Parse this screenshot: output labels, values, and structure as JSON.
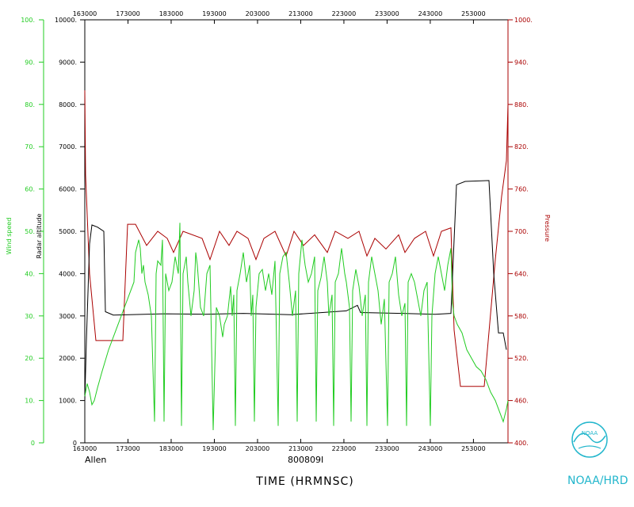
{
  "chart_data": {
    "type": "line",
    "storm_label": "Allen",
    "flight_id": "800809I",
    "xlabel": "TIME (HRMNSC)",
    "x_tick_labels": [
      "163000",
      "173000",
      "183000",
      "193000",
      "203000",
      "213000",
      "223000",
      "233000",
      "243000",
      "253000"
    ],
    "y_left_outer": {
      "label": "Wind speed",
      "ylim": [
        0,
        100
      ],
      "color": "#22cc22",
      "tick_labels": [
        "0",
        "10.",
        "20.",
        "30.",
        "40.",
        "50.",
        "60.",
        "70.",
        "80.",
        "90.",
        "100."
      ]
    },
    "y_left_inner": {
      "label": "Radar altitude",
      "ylim": [
        0,
        10000
      ],
      "color": "#000000",
      "tick_labels": [
        "0",
        "1000.",
        "2000.",
        "3000.",
        "4000.",
        "5000.",
        "6000.",
        "7000.",
        "8000.",
        "9000.",
        "10000."
      ]
    },
    "y_right": {
      "label": "Pressure",
      "ylim": [
        400,
        1000
      ],
      "color": "#aa0000",
      "tick_labels": [
        "400.",
        "460.",
        "520.",
        "580.",
        "640.",
        "700.",
        "760.",
        "820.",
        "880.",
        "940.",
        "1000."
      ]
    },
    "series": [
      {
        "name": "Radar altitude",
        "color": "#000000",
        "axis": "y_left_inner",
        "points": [
          [
            0,
            1000
          ],
          [
            2,
            2400
          ],
          [
            6,
            4700
          ],
          [
            9,
            5150
          ],
          [
            16,
            5100
          ],
          [
            24,
            5000
          ],
          [
            26,
            3100
          ],
          [
            36,
            3020
          ],
          [
            100,
            3050
          ],
          [
            150,
            3040
          ],
          [
            200,
            3060
          ],
          [
            260,
            3030
          ],
          [
            300,
            3080
          ],
          [
            330,
            3120
          ],
          [
            344,
            3250
          ],
          [
            348,
            3080
          ],
          [
            400,
            3060
          ],
          [
            442,
            3040
          ],
          [
            462,
            3060
          ],
          [
            469,
            6100
          ],
          [
            480,
            6180
          ],
          [
            510,
            6200
          ],
          [
            516,
            4000
          ],
          [
            522,
            2600
          ],
          [
            528,
            2600
          ],
          [
            532,
            2200
          ]
        ]
      },
      {
        "name": "Pressure",
        "color": "#aa0000",
        "axis": "y_right",
        "points": [
          [
            0,
            900
          ],
          [
            1,
            780
          ],
          [
            6,
            640
          ],
          [
            14,
            545
          ],
          [
            48,
            545
          ],
          [
            54,
            710
          ],
          [
            64,
            710
          ],
          [
            78,
            680
          ],
          [
            92,
            700
          ],
          [
            104,
            690
          ],
          [
            112,
            670
          ],
          [
            124,
            700
          ],
          [
            148,
            690
          ],
          [
            158,
            660
          ],
          [
            170,
            700
          ],
          [
            182,
            680
          ],
          [
            192,
            700
          ],
          [
            206,
            690
          ],
          [
            216,
            660
          ],
          [
            226,
            690
          ],
          [
            240,
            700
          ],
          [
            254,
            665
          ],
          [
            264,
            700
          ],
          [
            276,
            680
          ],
          [
            290,
            695
          ],
          [
            306,
            670
          ],
          [
            316,
            700
          ],
          [
            332,
            690
          ],
          [
            346,
            700
          ],
          [
            356,
            665
          ],
          [
            366,
            690
          ],
          [
            380,
            675
          ],
          [
            396,
            695
          ],
          [
            404,
            670
          ],
          [
            416,
            690
          ],
          [
            430,
            700
          ],
          [
            440,
            665
          ],
          [
            450,
            700
          ],
          [
            462,
            705
          ],
          [
            466,
            560
          ],
          [
            474,
            480
          ],
          [
            504,
            480
          ],
          [
            518,
            660
          ],
          [
            526,
            750
          ],
          [
            532,
            800
          ],
          [
            534,
            880
          ]
        ]
      },
      {
        "name": "Wind speed",
        "color": "#22cc22",
        "axis": "y_left_outer",
        "points": [
          [
            0,
            11
          ],
          [
            3,
            14
          ],
          [
            6,
            12
          ],
          [
            9,
            9
          ],
          [
            12,
            10
          ],
          [
            16,
            13
          ],
          [
            22,
            17
          ],
          [
            30,
            22
          ],
          [
            40,
            27
          ],
          [
            50,
            32
          ],
          [
            56,
            35
          ],
          [
            62,
            38
          ],
          [
            64,
            45
          ],
          [
            68,
            48
          ],
          [
            70,
            46
          ],
          [
            72,
            40
          ],
          [
            74,
            42
          ],
          [
            76,
            38
          ],
          [
            80,
            35
          ],
          [
            84,
            30
          ],
          [
            88,
            5
          ],
          [
            90,
            40
          ],
          [
            92,
            43
          ],
          [
            96,
            42
          ],
          [
            98,
            48
          ],
          [
            100,
            5
          ],
          [
            102,
            40
          ],
          [
            106,
            36
          ],
          [
            110,
            38
          ],
          [
            114,
            44
          ],
          [
            118,
            40
          ],
          [
            120,
            52
          ],
          [
            122,
            4
          ],
          [
            124,
            40
          ],
          [
            128,
            44
          ],
          [
            130,
            38
          ],
          [
            134,
            30
          ],
          [
            138,
            36
          ],
          [
            140,
            45
          ],
          [
            142,
            42
          ],
          [
            146,
            32
          ],
          [
            150,
            30
          ],
          [
            154,
            40
          ],
          [
            158,
            42
          ],
          [
            162,
            3
          ],
          [
            166,
            32
          ],
          [
            170,
            30
          ],
          [
            174,
            25
          ],
          [
            176,
            28
          ],
          [
            180,
            30
          ],
          [
            184,
            37
          ],
          [
            186,
            30
          ],
          [
            188,
            35
          ],
          [
            190,
            4
          ],
          [
            192,
            36
          ],
          [
            196,
            40
          ],
          [
            200,
            45
          ],
          [
            204,
            38
          ],
          [
            208,
            42
          ],
          [
            210,
            30
          ],
          [
            212,
            35
          ],
          [
            214,
            5
          ],
          [
            216,
            32
          ],
          [
            220,
            40
          ],
          [
            224,
            41
          ],
          [
            228,
            36
          ],
          [
            232,
            40
          ],
          [
            236,
            35
          ],
          [
            240,
            43
          ],
          [
            244,
            4
          ],
          [
            246,
            40
          ],
          [
            250,
            44
          ],
          [
            254,
            45
          ],
          [
            258,
            38
          ],
          [
            262,
            30
          ],
          [
            266,
            36
          ],
          [
            268,
            5
          ],
          [
            270,
            40
          ],
          [
            274,
            48
          ],
          [
            278,
            42
          ],
          [
            282,
            38
          ],
          [
            286,
            40
          ],
          [
            290,
            44
          ],
          [
            292,
            5
          ],
          [
            294,
            36
          ],
          [
            298,
            39
          ],
          [
            302,
            44
          ],
          [
            306,
            38
          ],
          [
            308,
            30
          ],
          [
            312,
            35
          ],
          [
            314,
            4
          ],
          [
            316,
            38
          ],
          [
            320,
            40
          ],
          [
            324,
            46
          ],
          [
            328,
            40
          ],
          [
            330,
            38
          ],
          [
            334,
            32
          ],
          [
            336,
            5
          ],
          [
            338,
            36
          ],
          [
            342,
            41
          ],
          [
            346,
            37
          ],
          [
            350,
            30
          ],
          [
            354,
            35
          ],
          [
            356,
            4
          ],
          [
            358,
            38
          ],
          [
            362,
            44
          ],
          [
            366,
            40
          ],
          [
            370,
            36
          ],
          [
            374,
            28
          ],
          [
            378,
            34
          ],
          [
            382,
            4
          ],
          [
            384,
            38
          ],
          [
            388,
            40
          ],
          [
            392,
            44
          ],
          [
            396,
            35
          ],
          [
            400,
            30
          ],
          [
            404,
            33
          ],
          [
            406,
            4
          ],
          [
            408,
            38
          ],
          [
            412,
            40
          ],
          [
            416,
            38
          ],
          [
            420,
            34
          ],
          [
            424,
            30
          ],
          [
            428,
            36
          ],
          [
            432,
            38
          ],
          [
            436,
            4
          ],
          [
            438,
            30
          ],
          [
            442,
            40
          ],
          [
            446,
            44
          ],
          [
            450,
            40
          ],
          [
            454,
            36
          ],
          [
            458,
            42
          ],
          [
            462,
            46
          ],
          [
            464,
            33
          ],
          [
            466,
            30
          ],
          [
            470,
            28
          ],
          [
            476,
            26
          ],
          [
            482,
            22
          ],
          [
            488,
            20
          ],
          [
            494,
            18
          ],
          [
            500,
            17
          ],
          [
            506,
            15
          ],
          [
            512,
            12
          ],
          [
            518,
            10
          ],
          [
            524,
            7
          ],
          [
            528,
            5
          ],
          [
            532,
            8
          ],
          [
            534,
            10
          ]
        ]
      }
    ]
  },
  "branding": {
    "org": "NOAA/HRD",
    "logo_text": "NOAA",
    "color": "#22b6cc"
  }
}
